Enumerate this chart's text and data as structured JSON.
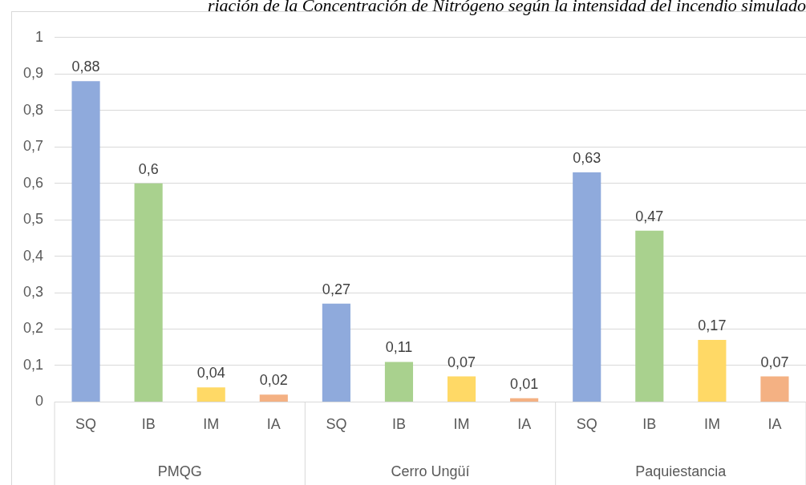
{
  "chart_data": {
    "type": "bar",
    "title": "riación de la Concentración de Nitrógeno según la intensidad del incendio simulado",
    "categories": [
      "SQ",
      "IB",
      "IM",
      "IA",
      "SQ",
      "IB",
      "IM",
      "IA",
      "SQ",
      "IB",
      "IM",
      "IA"
    ],
    "values": [
      0.88,
      0.6,
      0.04,
      0.02,
      0.27,
      0.11,
      0.07,
      0.01,
      0.63,
      0.47,
      0.17,
      0.07
    ],
    "colors": [
      "#8faadc",
      "#a9d18e",
      "#ffd966",
      "#f4b183",
      "#8faadc",
      "#a9d18e",
      "#ffd966",
      "#f4b183",
      "#8faadc",
      "#a9d18e",
      "#ffd966",
      "#f4b183"
    ],
    "annotations": [
      "PMQG",
      "Cerro Ungüí",
      "Paquiestancia"
    ],
    "ylim": [
      0,
      1
    ],
    "yticks": [
      0,
      {
        "value": 0.1,
        "label": "0,1"
      },
      {
        "value": 0.2,
        "label": "0,2"
      },
      {
        "value": 0.3,
        "label": "0,3"
      },
      {
        "value": 0.4,
        "label": "0,4"
      },
      {
        "value": 0.5,
        "label": "0,5"
      },
      {
        "value": 0.6,
        "label": "0,6"
      },
      {
        "value": 0.7,
        "label": "0,7"
      },
      {
        "value": 0.8,
        "label": "0,8"
      },
      {
        "value": 0.9,
        "label": "0,9"
      },
      1
    ],
    "value_labels": [
      "0,88",
      "0,6",
      "0,04",
      "0,02",
      "0,27",
      "0,11",
      "0,07",
      "0,01",
      "0,63",
      "0,47",
      "0,17",
      "0,07"
    ],
    "grid": "y",
    "legend": false
  }
}
